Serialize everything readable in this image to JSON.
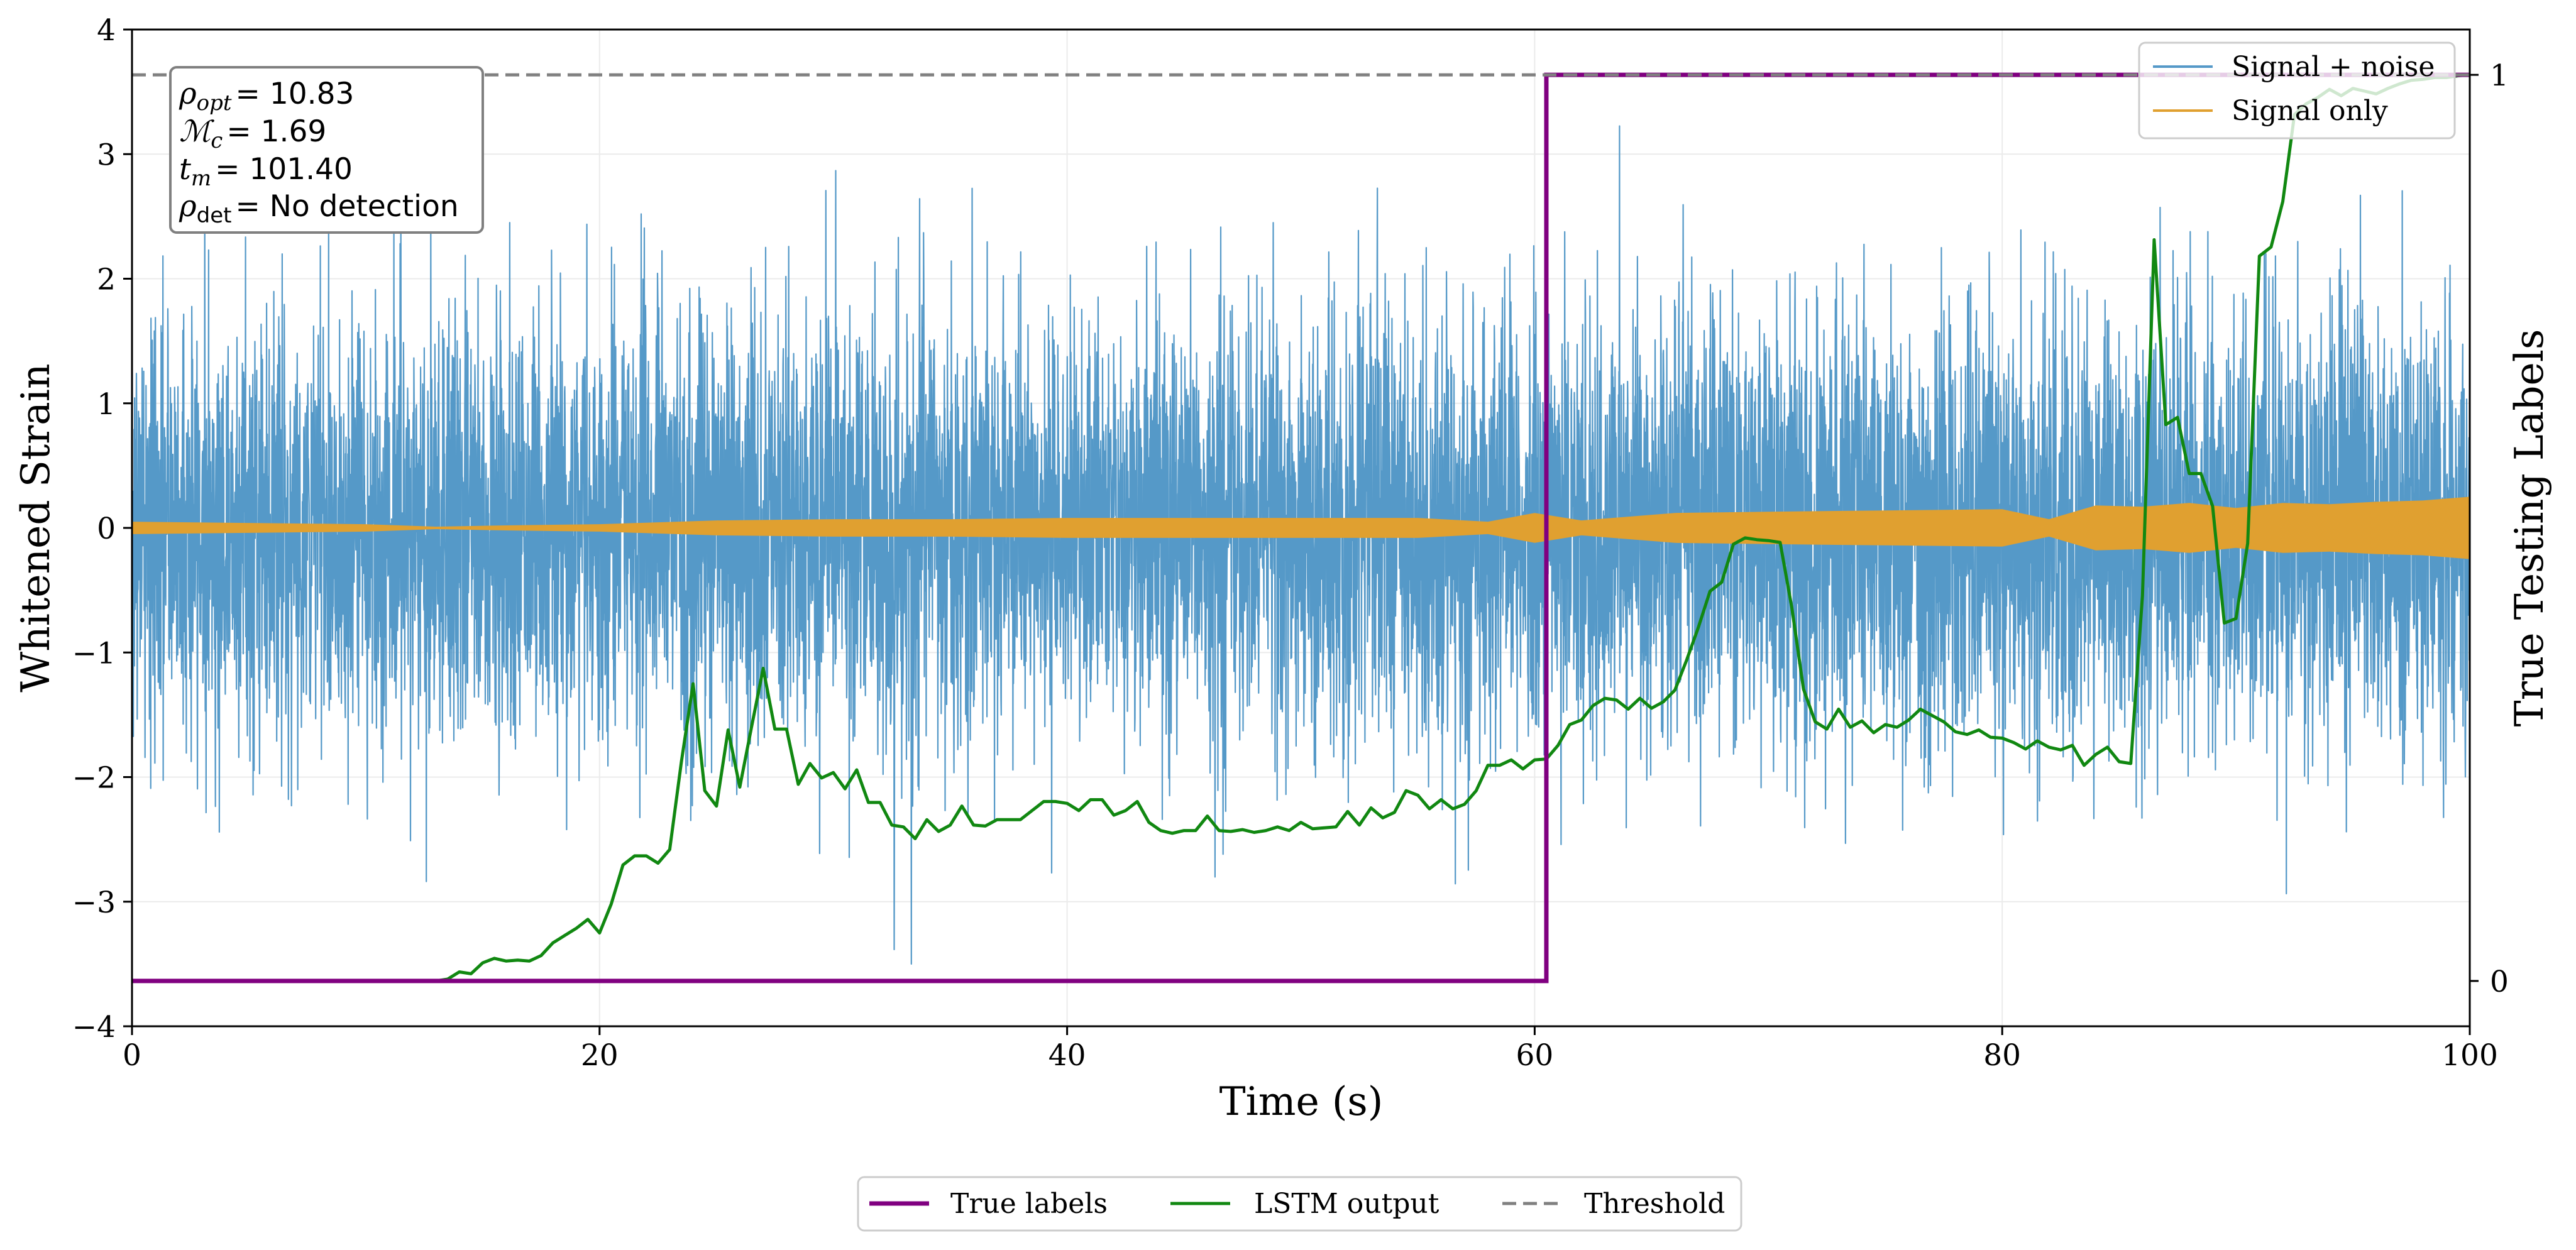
{
  "chart_data": {
    "type": "line",
    "title": "",
    "xlabel": "Time (s)",
    "ylabel": "Whitened Strain",
    "y2label": "True Testing Labels",
    "xlim": [
      0,
      100
    ],
    "ylim": [
      -4,
      4
    ],
    "y2lim": [
      -0.05,
      1.05
    ],
    "xticks": [
      0,
      20,
      40,
      60,
      80,
      100
    ],
    "yticks": [
      -4,
      -3,
      -2,
      -1,
      0,
      1,
      2,
      3,
      4
    ],
    "y2ticks": [
      0,
      1
    ],
    "grid": true,
    "colors": {
      "signal_noise": "#5599c8",
      "signal_only": "#e0a030",
      "true_labels": "#800080",
      "lstm": "#118811",
      "threshold": "#808080"
    },
    "annotation": {
      "rho_opt_label": "ρ",
      "rho_opt_sub": "opt",
      "rho_opt_value": "= 10.83",
      "mc_label": "ℳ",
      "mc_sub": "c",
      "mc_value": "= 1.69",
      "tm_label": "t",
      "tm_sub": "m",
      "tm_value": "= 101.40",
      "rho_det_label": "ρ",
      "rho_det_sub": "det",
      "rho_det_value": "= No detection"
    },
    "legend_top": {
      "position": "top-right",
      "entries": [
        "Signal + noise",
        "Signal only"
      ]
    },
    "legend_bottom": {
      "position": "bottom-center",
      "entries": [
        "True labels",
        "LSTM output",
        "Threshold"
      ]
    },
    "series": [
      {
        "name": "Signal + noise",
        "axis": "left",
        "style": "noise",
        "x_range": [
          0,
          100
        ],
        "typical_amplitude": 1.2,
        "peak_amplitude": 3.5
      },
      {
        "name": "Signal only",
        "axis": "left",
        "style": "envelope",
        "x": [
          0,
          5,
          10,
          13,
          16,
          20,
          25,
          30,
          35,
          40,
          45,
          50,
          55,
          58,
          60,
          62,
          66,
          70,
          75,
          80,
          82,
          84,
          86,
          88,
          90,
          92,
          94,
          96,
          98,
          100
        ],
        "amplitude": [
          0.05,
          0.04,
          0.03,
          0.01,
          0.02,
          0.03,
          0.06,
          0.07,
          0.07,
          0.08,
          0.08,
          0.08,
          0.08,
          0.05,
          0.12,
          0.06,
          0.12,
          0.13,
          0.14,
          0.15,
          0.07,
          0.18,
          0.17,
          0.2,
          0.16,
          0.2,
          0.19,
          0.21,
          0.22,
          0.25
        ]
      },
      {
        "name": "True labels",
        "axis": "right",
        "x": [
          0,
          60.5,
          60.5,
          100
        ],
        "values": [
          0,
          0,
          1,
          1
        ]
      },
      {
        "name": "LSTM output",
        "axis": "right",
        "x": [
          0,
          13,
          13.5,
          14,
          14.5,
          15,
          15.5,
          16,
          16.5,
          17,
          17.5,
          18,
          18.5,
          19,
          19.5,
          20,
          20.5,
          21,
          21.5,
          22,
          22.5,
          23,
          23.5,
          24,
          24.5,
          25,
          25.5,
          26,
          26.5,
          27,
          27.5,
          28,
          28.5,
          29,
          29.5,
          30,
          30.5,
          31,
          31.5,
          32,
          32.5,
          33,
          33.5,
          34,
          34.5,
          35,
          35.5,
          36,
          36.5,
          37,
          37.5,
          38,
          38.5,
          39,
          39.5,
          40,
          40.5,
          41,
          41.5,
          42,
          42.5,
          43,
          43.5,
          44,
          44.5,
          45,
          45.5,
          46,
          46.5,
          47,
          47.5,
          48,
          48.5,
          49,
          49.5,
          50,
          50.5,
          51,
          51.5,
          52,
          52.5,
          53,
          53.5,
          54,
          54.5,
          55,
          55.5,
          56,
          56.5,
          57,
          57.5,
          58,
          58.5,
          59,
          59.5,
          60,
          60.5,
          61,
          61.5,
          62,
          62.5,
          63,
          63.5,
          64,
          64.5,
          65,
          65.5,
          66,
          66.5,
          67,
          67.5,
          68,
          68.5,
          69,
          69.5,
          70,
          70.5,
          71,
          71.5,
          72,
          72.5,
          73,
          73.5,
          74,
          74.5,
          75,
          75.5,
          76,
          76.5,
          77,
          77.5,
          78,
          78.5,
          79,
          79.5,
          80,
          80.5,
          81,
          81.5,
          82,
          82.5,
          83,
          83.5,
          84,
          84.5,
          85,
          85.5,
          86,
          86.5,
          87,
          87.5,
          88,
          88.5,
          89,
          89.5,
          90,
          90.5,
          91,
          91.5,
          92,
          92.5,
          93,
          93.5,
          94,
          94.5,
          95,
          95.5,
          96,
          96.5,
          97,
          97.5,
          98,
          98.5,
          99,
          99.5,
          100
        ],
        "values": [
          0.0,
          0.0,
          0.002,
          0.01,
          0.008,
          0.02,
          0.025,
          0.022,
          0.023,
          0.022,
          0.028,
          0.042,
          0.05,
          0.058,
          0.068,
          0.053,
          0.085,
          0.128,
          0.138,
          0.138,
          0.13,
          0.145,
          0.242,
          0.328,
          0.21,
          0.193,
          0.277,
          0.214,
          0.28,
          0.345,
          0.278,
          0.278,
          0.217,
          0.24,
          0.224,
          0.23,
          0.212,
          0.233,
          0.197,
          0.197,
          0.172,
          0.17,
          0.157,
          0.178,
          0.165,
          0.172,
          0.193,
          0.172,
          0.171,
          0.178,
          0.178,
          0.178,
          0.188,
          0.198,
          0.198,
          0.196,
          0.188,
          0.2,
          0.2,
          0.183,
          0.188,
          0.198,
          0.175,
          0.166,
          0.163,
          0.166,
          0.166,
          0.182,
          0.166,
          0.165,
          0.167,
          0.164,
          0.166,
          0.17,
          0.166,
          0.175,
          0.168,
          0.169,
          0.17,
          0.187,
          0.172,
          0.191,
          0.18,
          0.186,
          0.21,
          0.205,
          0.19,
          0.2,
          0.19,
          0.195,
          0.21,
          0.238,
          0.238,
          0.244,
          0.234,
          0.244,
          0.245,
          0.26,
          0.283,
          0.288,
          0.304,
          0.312,
          0.31,
          0.3,
          0.312,
          0.301,
          0.308,
          0.321,
          0.354,
          0.39,
          0.43,
          0.44,
          0.482,
          0.489,
          0.487,
          0.486,
          0.484,
          0.412,
          0.322,
          0.286,
          0.278,
          0.3,
          0.28,
          0.287,
          0.274,
          0.283,
          0.28,
          0.288,
          0.3,
          0.293,
          0.286,
          0.275,
          0.272,
          0.277,
          0.269,
          0.268,
          0.263,
          0.256,
          0.265,
          0.258,
          0.255,
          0.26,
          0.238,
          0.25,
          0.258,
          0.242,
          0.24,
          0.425,
          0.818,
          0.614,
          0.622,
          0.56,
          0.56,
          0.524,
          0.395,
          0.4,
          0.483,
          0.8,
          0.81,
          0.86,
          0.956,
          0.968,
          0.975,
          0.984,
          0.977,
          0.985,
          0.982,
          0.979,
          0.985,
          0.99,
          0.994,
          0.995,
          0.997,
          0.997,
          0.999,
          1.0
        ]
      },
      {
        "name": "Threshold",
        "axis": "right",
        "style": "dashed",
        "value": 1
      }
    ]
  }
}
